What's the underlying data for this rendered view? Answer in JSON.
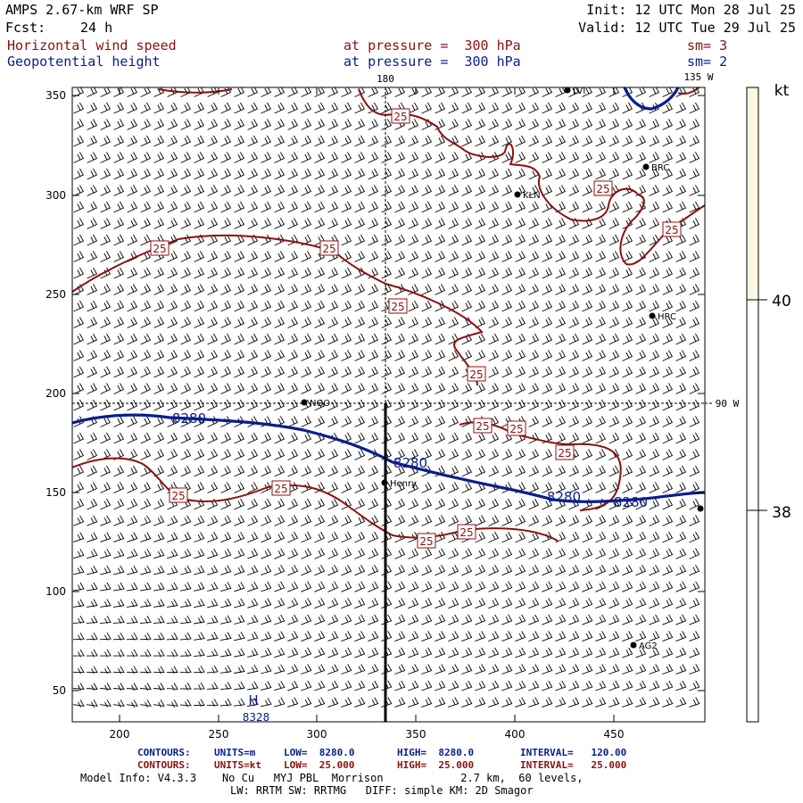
{
  "header": {
    "model": "AMPS 2.67-km WRF SP",
    "fcst_label": "Fcst:",
    "fcst_value": "24 h",
    "init": "Init: 12 UTC Mon 28 Jul 25",
    "valid": "Valid: 12 UTC Tue 29 Jul 25",
    "field1_name": "Horizontal wind speed",
    "field1_level": "at pressure =  300 hPa",
    "field1_sm": "sm= 3",
    "field2_name": "Geopotential height",
    "field2_level": "at pressure =  300 hPa",
    "field2_sm": "sm= 2"
  },
  "map": {
    "meridian_180": "180",
    "meridian_135w": "135 W",
    "meridian_90w": "90 W",
    "x_ticks": [
      "200",
      "250",
      "300",
      "350",
      "400",
      "450"
    ],
    "y_ticks": [
      "350",
      "300",
      "250",
      "200",
      "150",
      "100",
      "50"
    ],
    "stations": [
      {
        "id": "LVI"
      },
      {
        "id": "BRC"
      },
      {
        "id": "KLN"
      },
      {
        "id": "HRC"
      },
      {
        "id": "NGO"
      },
      {
        "id": "Henry"
      },
      {
        "id": "AG2"
      }
    ],
    "pressure_center": {
      "label": "H",
      "value": "8328"
    },
    "height_contour_label": "8280",
    "wind_contour_label": "25",
    "colors": {
      "wind_contour": "#8b1010",
      "height_contour": "#0a1e8c",
      "barbs": "#000000"
    }
  },
  "colorbar": {
    "unit": "kt",
    "levels": [
      "40",
      "38"
    ],
    "fill_color": "#fcf8e4"
  },
  "footer": {
    "row1": {
      "label": "CONTOURS:",
      "units": "UNITS=m",
      "low": "LOW=  8280.0",
      "high": "HIGH=  8280.0",
      "interval": "INTERVAL=   120.00"
    },
    "row2": {
      "label": "CONTOURS:",
      "units": "UNITS=kt",
      "low": "LOW=  25.000",
      "high": "HIGH=  25.000",
      "interval": "INTERVAL=   25.000"
    },
    "model_info": "Model Info: V4.3.3    No Cu   MYJ PBL  Morrison            2.7 km,  60 levels,",
    "model_info2": "LW: RRTM SW: RRTMG   DIFF: simple KM: 2D Smagor"
  }
}
